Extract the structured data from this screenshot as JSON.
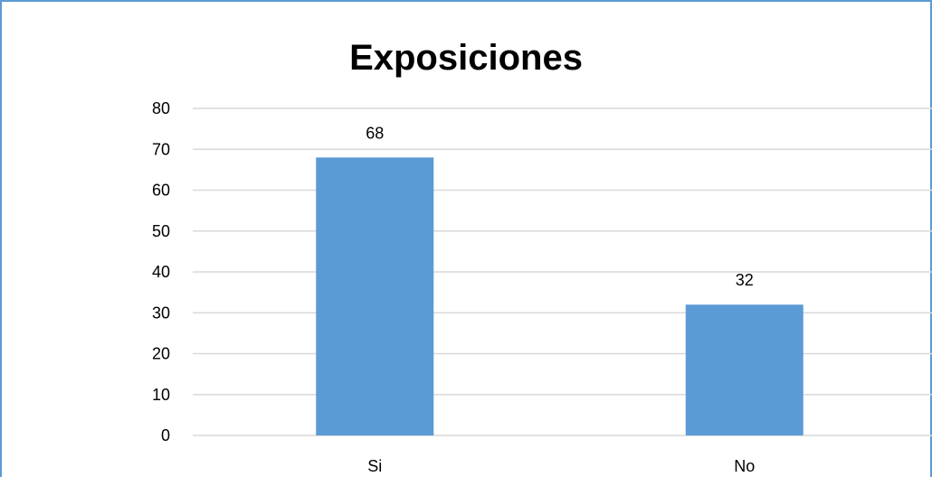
{
  "chart_data": {
    "type": "bar",
    "title": "Exposiciones",
    "categories": [
      "Si",
      "No"
    ],
    "values": [
      68,
      32
    ],
    "data_labels": [
      "68",
      "32"
    ],
    "ylim": [
      0,
      80
    ],
    "yticks": [
      0,
      10,
      20,
      30,
      40,
      50,
      60,
      70,
      80
    ],
    "grid": true,
    "legend": "none",
    "colors": {
      "bar": "#5b9bd5",
      "grid": "#d9d9d9",
      "border": "#5b9bd5"
    }
  }
}
